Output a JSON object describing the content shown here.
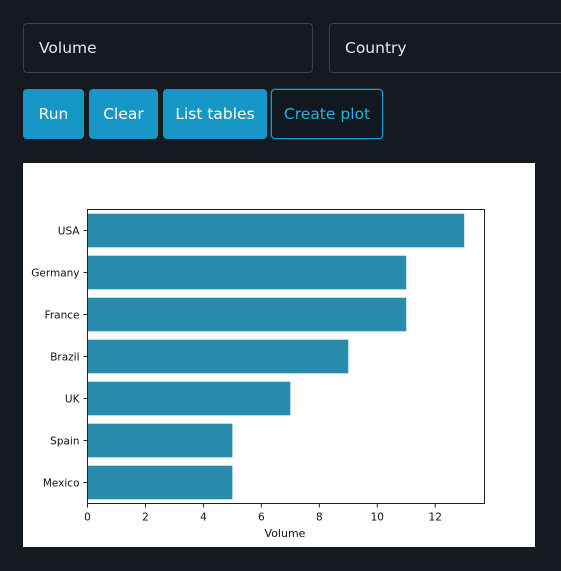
{
  "inputs": {
    "x_column": {
      "value": "Volume"
    },
    "y_column": {
      "value": "Country"
    }
  },
  "buttons": {
    "run": "Run",
    "clear": "Clear",
    "list_tables": "List tables",
    "create_plot": "Create plot"
  },
  "colors": {
    "background": "#141a20",
    "button": "#1697c6",
    "button_outline": "#1a9fd0",
    "bar": "#2a8cad"
  },
  "chart_data": {
    "type": "bar",
    "orientation": "horizontal",
    "categories": [
      "USA",
      "Germany",
      "France",
      "Brazil",
      "UK",
      "Spain",
      "Mexico"
    ],
    "values": [
      13,
      11,
      11,
      9,
      7,
      5,
      5
    ],
    "xlabel": "Volume",
    "ylabel": "",
    "xlim": [
      0,
      13.7
    ],
    "xticks": [
      0,
      2,
      4,
      6,
      8,
      10,
      12
    ],
    "grid": false,
    "legend": "none"
  }
}
